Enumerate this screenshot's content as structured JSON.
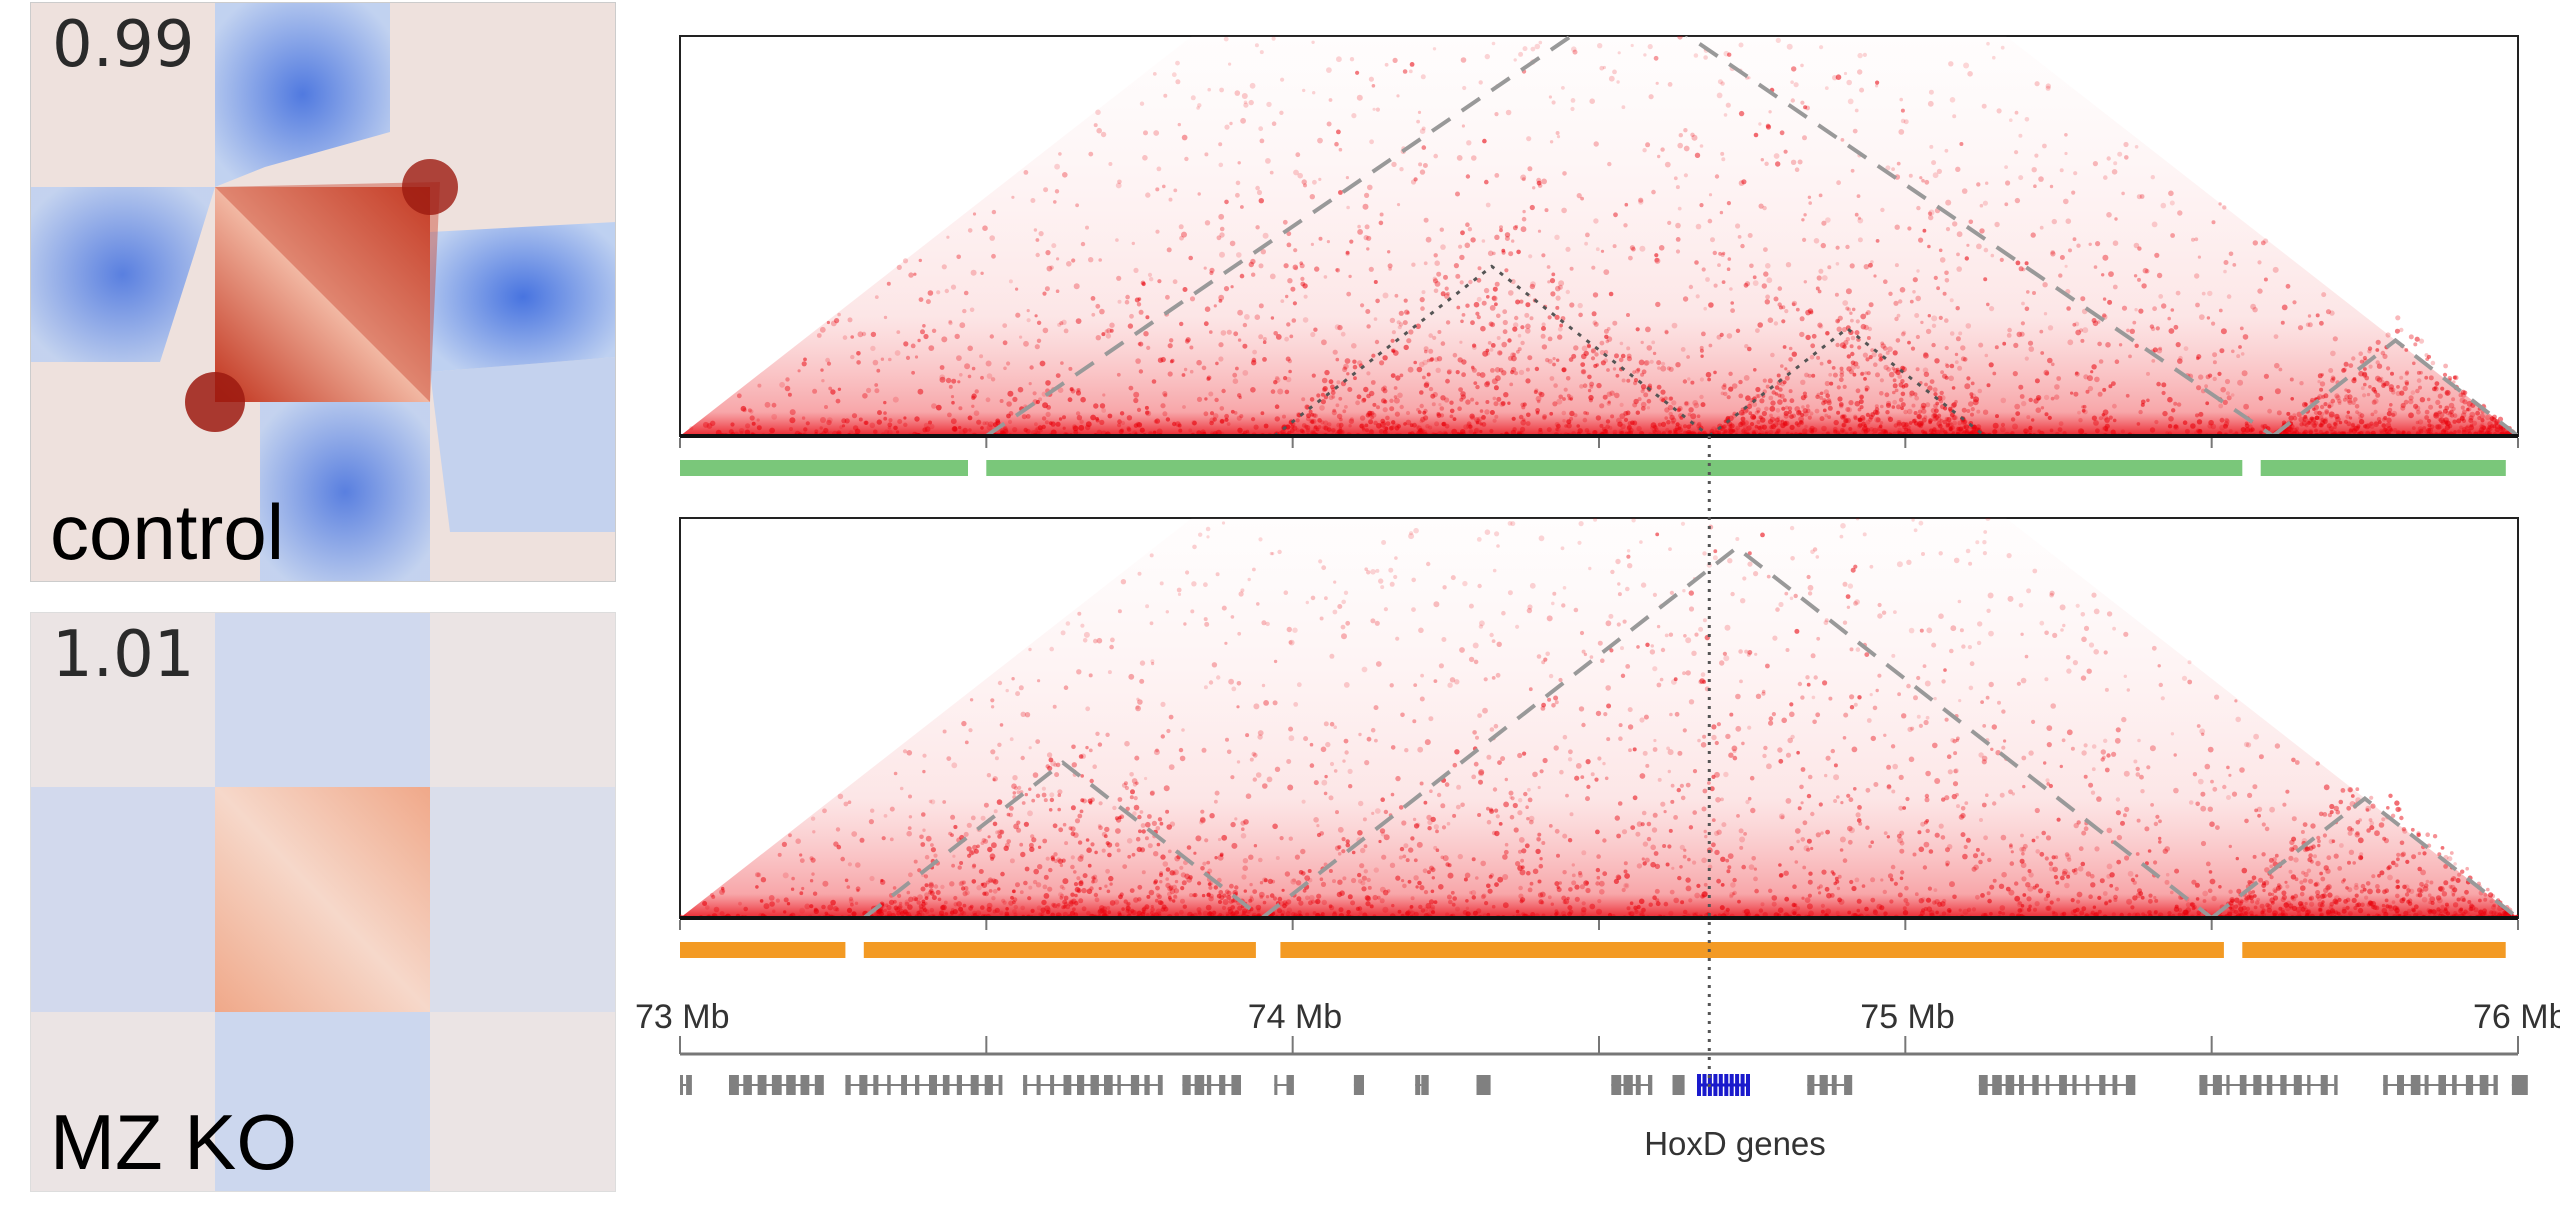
{
  "pileups": {
    "control": {
      "value": "0.99",
      "label": "control"
    },
    "mz_ko": {
      "value": "1.01",
      "label": "MZ KO"
    }
  },
  "axis": {
    "ticks": [
      {
        "pos_mb": 73.0,
        "label": "73 Mb"
      },
      {
        "pos_mb": 73.5,
        "label": ""
      },
      {
        "pos_mb": 74.0,
        "label": "74 Mb"
      },
      {
        "pos_mb": 74.5,
        "label": ""
      },
      {
        "pos_mb": 75.0,
        "label": "75 Mb"
      },
      {
        "pos_mb": 75.5,
        "label": ""
      },
      {
        "pos_mb": 76.0,
        "label": "76 Mb"
      }
    ],
    "range_mb": [
      73.0,
      76.0
    ]
  },
  "genes": {
    "label": "HoxD genes",
    "hoxd_mb": [
      74.66,
      74.74
    ]
  },
  "highlight_mb": 74.68,
  "colors": {
    "contact": "#e8000a",
    "control_domains": "#7ac77a",
    "ko_domains": "#f39a24",
    "boundary_dash": "#999999",
    "dotted": "#555555",
    "gene_gray": "#808080",
    "gene_blue": "#1a1acc"
  },
  "control": {
    "domains_mb": [
      [
        73.0,
        73.47
      ],
      [
        73.5,
        75.55
      ],
      [
        75.58,
        75.98
      ]
    ],
    "tads_dashed": [
      [
        73.5,
        75.6
      ],
      [
        75.6,
        76.0
      ]
    ],
    "tads_dotted": [
      [
        73.97,
        74.68
      ],
      [
        74.68,
        75.13
      ]
    ]
  },
  "mz_ko": {
    "domains_mb": [
      [
        73.0,
        73.27
      ],
      [
        73.3,
        73.94
      ],
      [
        73.98,
        75.52
      ],
      [
        75.55,
        75.98
      ]
    ],
    "tads_dashed": [
      [
        73.3,
        73.95
      ],
      [
        73.95,
        75.5
      ],
      [
        75.5,
        76.0
      ]
    ]
  }
}
